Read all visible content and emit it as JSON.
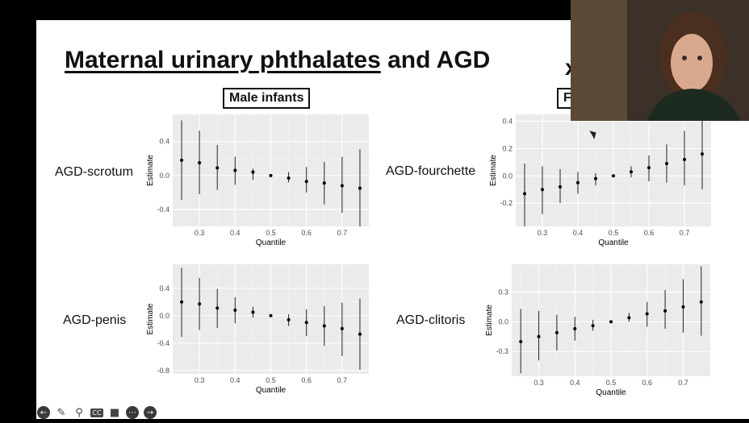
{
  "slide": {
    "title_underlined": "Maternal urinary phthalates",
    "title_rest": " and AGD",
    "title_tail": "x",
    "male_label": "Male infants",
    "female_label": "F"
  },
  "row_labels": [
    "AGD-scrotum",
    "AGD-fourchette",
    "AGD-penis",
    "AGD-clitoris"
  ],
  "toolbar": {
    "icons": [
      "back-icon",
      "pen-icon",
      "search-icon",
      "captions-icon",
      "camera-icon",
      "more-icon",
      "forward-icon"
    ],
    "cc_label": "CC"
  },
  "chart_data": [
    {
      "type": "scatter",
      "title": "",
      "xlabel": "Quantile",
      "ylabel": "Estimate",
      "x": [
        0.25,
        0.3,
        0.35,
        0.4,
        0.45,
        0.5,
        0.55,
        0.6,
        0.65,
        0.7,
        0.75
      ],
      "y": [
        0.18,
        0.15,
        0.09,
        0.06,
        0.04,
        0.0,
        -0.03,
        -0.07,
        -0.09,
        -0.12,
        -0.15
      ],
      "ci_low": [
        -0.29,
        -0.22,
        -0.17,
        -0.11,
        -0.05,
        0.0,
        -0.08,
        -0.2,
        -0.34,
        -0.44,
        -0.6
      ],
      "ci_high": [
        0.65,
        0.53,
        0.36,
        0.22,
        0.08,
        0.0,
        0.04,
        0.1,
        0.16,
        0.22,
        0.31
      ],
      "xlim": [
        0.225,
        0.775
      ],
      "ylim": [
        -0.6,
        0.72
      ],
      "xticks": [
        0.3,
        0.4,
        0.5,
        0.6,
        0.7
      ],
      "xtick_labels": [
        "0.3",
        "0.4",
        "0.5",
        "0.6",
        "0.7"
      ],
      "yticks": [
        -0.4,
        0.0,
        0.4
      ],
      "ytick_labels": [
        "-0.4",
        "0.0",
        "0.4"
      ],
      "grid": true
    },
    {
      "type": "scatter",
      "title": "",
      "xlabel": "Quantile",
      "ylabel": "Estimate",
      "x": [
        0.25,
        0.3,
        0.35,
        0.4,
        0.45,
        0.5,
        0.55,
        0.6,
        0.65,
        0.7,
        0.75
      ],
      "y": [
        -0.13,
        -0.1,
        -0.08,
        -0.05,
        -0.02,
        0.0,
        0.03,
        0.06,
        0.09,
        0.12,
        0.16
      ],
      "ci_low": [
        -0.37,
        -0.28,
        -0.2,
        -0.13,
        -0.07,
        0.0,
        -0.01,
        -0.04,
        -0.05,
        -0.07,
        -0.1
      ],
      "ci_high": [
        0.09,
        0.07,
        0.05,
        0.03,
        0.02,
        0.0,
        0.07,
        0.15,
        0.23,
        0.33,
        0.43
      ],
      "xlim": [
        0.225,
        0.775
      ],
      "ylim": [
        -0.37,
        0.45
      ],
      "xticks": [
        0.3,
        0.4,
        0.5,
        0.6,
        0.7
      ],
      "xtick_labels": [
        "0.3",
        "0.4",
        "0.5",
        "0.6",
        "0.7"
      ],
      "yticks": [
        -0.2,
        0.0,
        0.2,
        0.4
      ],
      "ytick_labels": [
        "-0.2",
        "0.0",
        "0.2",
        "0.4"
      ],
      "grid": true
    },
    {
      "type": "scatter",
      "title": "",
      "xlabel": "Quantile",
      "ylabel": "Estimate",
      "x": [
        0.25,
        0.3,
        0.35,
        0.4,
        0.45,
        0.5,
        0.55,
        0.6,
        0.65,
        0.7,
        0.75
      ],
      "y": [
        0.2,
        0.17,
        0.11,
        0.08,
        0.05,
        0.0,
        -0.06,
        -0.1,
        -0.15,
        -0.19,
        -0.27
      ],
      "ci_low": [
        -0.31,
        -0.21,
        -0.18,
        -0.11,
        -0.03,
        0.0,
        -0.15,
        -0.3,
        -0.44,
        -0.59,
        -0.79
      ],
      "ci_high": [
        0.7,
        0.55,
        0.39,
        0.27,
        0.13,
        0.0,
        0.02,
        0.09,
        0.14,
        0.19,
        0.25
      ],
      "xlim": [
        0.225,
        0.775
      ],
      "ylim": [
        -0.85,
        0.75
      ],
      "xticks": [
        0.3,
        0.4,
        0.5,
        0.6,
        0.7
      ],
      "xtick_labels": [
        "0.3",
        "0.4",
        "0.5",
        "0.6",
        "0.7"
      ],
      "yticks": [
        -0.8,
        -0.4,
        0.0,
        0.4
      ],
      "ytick_labels": [
        "-0.8",
        "-0.4",
        "0.0",
        "0.4"
      ],
      "grid": true
    },
    {
      "type": "scatter",
      "title": "",
      "xlabel": "Quantile",
      "ylabel": "Estimate",
      "x": [
        0.25,
        0.3,
        0.35,
        0.4,
        0.45,
        0.5,
        0.55,
        0.6,
        0.65,
        0.7,
        0.75
      ],
      "y": [
        -0.2,
        -0.15,
        -0.11,
        -0.07,
        -0.04,
        0.0,
        0.04,
        0.08,
        0.11,
        0.15,
        0.2
      ],
      "ci_low": [
        -0.52,
        -0.39,
        -0.29,
        -0.19,
        -0.09,
        0.0,
        0.0,
        -0.05,
        -0.07,
        -0.11,
        -0.14
      ],
      "ci_high": [
        0.13,
        0.11,
        0.07,
        0.05,
        0.02,
        0.0,
        0.09,
        0.2,
        0.32,
        0.43,
        0.56
      ],
      "xlim": [
        0.225,
        0.775
      ],
      "ylim": [
        -0.55,
        0.58
      ],
      "xticks": [
        0.3,
        0.4,
        0.5,
        0.6,
        0.7
      ],
      "xtick_labels": [
        "0.3",
        "0.4",
        "0.5",
        "0.6",
        "0.7"
      ],
      "yticks": [
        -0.3,
        0.0,
        0.3
      ],
      "ytick_labels": [
        "-0.3",
        "0.0",
        "0.3"
      ],
      "grid": true
    }
  ]
}
